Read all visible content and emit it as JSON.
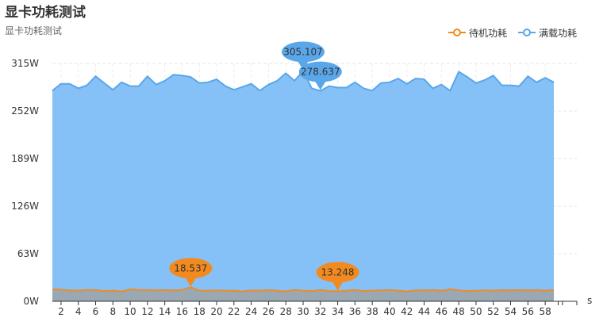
{
  "chart_data": {
    "type": "line",
    "title": "显卡功耗测试",
    "subtitle": "显卡功耗测试",
    "x_unit": "s",
    "ylim": [
      0,
      315
    ],
    "y_ticks": [
      "0W",
      "63W",
      "126W",
      "189W",
      "252W",
      "315W"
    ],
    "x": [
      1,
      2,
      3,
      4,
      5,
      6,
      7,
      8,
      9,
      10,
      11,
      12,
      13,
      14,
      15,
      16,
      17,
      18,
      19,
      20,
      21,
      22,
      23,
      24,
      25,
      26,
      27,
      28,
      29,
      30,
      31,
      32,
      33,
      34,
      35,
      36,
      37,
      38,
      39,
      40,
      41,
      42,
      43,
      44,
      45,
      46,
      47,
      48,
      49,
      50,
      51,
      52,
      53,
      54,
      55,
      56,
      57,
      58,
      59
    ],
    "x_tick_labels": [
      "2",
      "4",
      "6",
      "8",
      "10",
      "12",
      "14",
      "16",
      "18",
      "20",
      "22",
      "24",
      "26",
      "28",
      "30",
      "32",
      "34",
      "36",
      "38",
      "40",
      "42",
      "44",
      "46",
      "48",
      "50",
      "52",
      "54",
      "56",
      "58"
    ],
    "series": [
      {
        "name": "待机功耗",
        "color": "#f28a1f",
        "area_color": "#9aa8b4",
        "values": [
          16,
          15.5,
          14.5,
          14,
          15,
          15,
          13.5,
          14,
          13,
          16,
          15,
          15,
          14.5,
          15,
          14.5,
          15,
          18.537,
          14,
          14,
          14.5,
          14,
          14,
          13,
          14.5,
          14,
          15,
          14,
          13,
          15,
          14,
          13.5,
          15,
          13.5,
          13.248,
          14,
          15,
          13.5,
          14,
          14.5,
          15,
          14,
          13,
          14.5,
          14.5,
          15,
          14,
          16,
          14.5,
          13.5,
          14,
          14.5,
          14,
          15,
          14.5,
          15,
          14.5,
          15,
          14,
          15
        ],
        "markers": [
          {
            "x": 17,
            "value": "18.537"
          },
          {
            "x": 34,
            "value": "13.248"
          }
        ]
      },
      {
        "name": "满载功耗",
        "color": "#5aa6ea",
        "area_color": "#85c1f7",
        "values": [
          279,
          288,
          288,
          282,
          286,
          298,
          289,
          280,
          290,
          285,
          285,
          298,
          287,
          292,
          300,
          299,
          297,
          289,
          290,
          294,
          285,
          280,
          284,
          288,
          279,
          287,
          292,
          302,
          292,
          305.107,
          282,
          278.637,
          285,
          283,
          283,
          290,
          282,
          279,
          289,
          290,
          295,
          288,
          295,
          294,
          282,
          287,
          279,
          304,
          297,
          289,
          293,
          299,
          286,
          286,
          285,
          298,
          290,
          296,
          290
        ],
        "markers": [
          {
            "x": 30,
            "value": "305.107"
          },
          {
            "x": 32,
            "value": "278.637"
          }
        ]
      }
    ],
    "grid": true,
    "legend_position": "top-right"
  }
}
